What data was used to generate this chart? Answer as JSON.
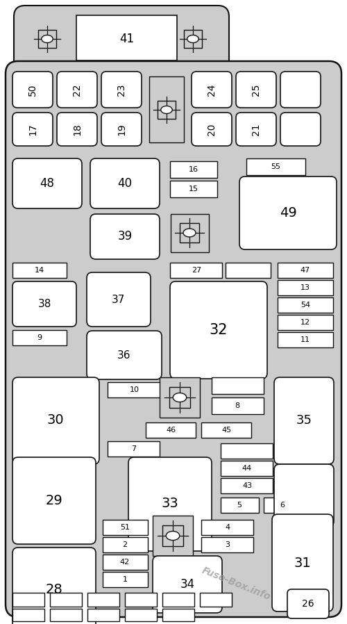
{
  "bg_color": "#cccccc",
  "box_bg": "#ffffff",
  "box_edge": "#111111",
  "watermark": "Fuse-Box.info",
  "fig_w": 5.0,
  "fig_h": 8.98,
  "dpi": 100
}
